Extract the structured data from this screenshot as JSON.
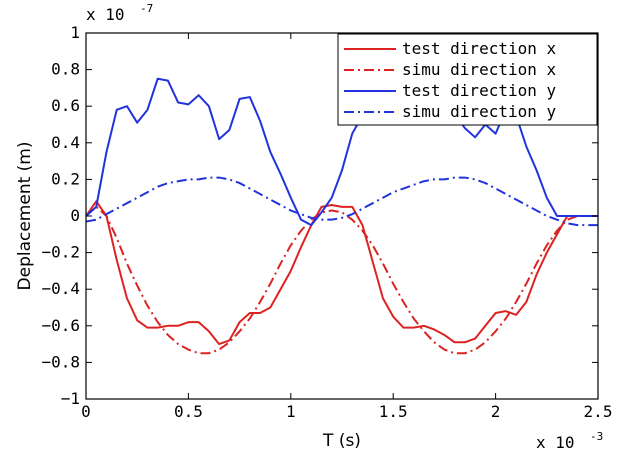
{
  "chart_data": {
    "type": "line",
    "xlabel": "T (s)",
    "ylabel": "Deplacement (m)",
    "x_multiplier": {
      "base": "x 10",
      "exponent": "-3"
    },
    "y_multiplier": {
      "base": "x 10",
      "exponent": "-7"
    },
    "xlim": [
      0,
      2.5
    ],
    "ylim": [
      -1,
      1
    ],
    "x_ticks": [
      0,
      0.5,
      1,
      1.5,
      2,
      2.5
    ],
    "x_tick_labels": [
      "0",
      "0.5",
      "1",
      "1.5",
      "2",
      "2.5"
    ],
    "y_ticks": [
      -1,
      -0.8,
      -0.6,
      -0.4,
      -0.2,
      0,
      0.2,
      0.4,
      0.6,
      0.8,
      1
    ],
    "y_tick_labels": [
      "−1",
      "−0.8",
      "−0.6",
      "−0.4",
      "−0.2",
      "0",
      "0.2",
      "0.4",
      "0.6",
      "0.8",
      "1"
    ],
    "grid": false,
    "legend_position": "top-right",
    "series": [
      {
        "name": "test direction x",
        "color": "#dd2222",
        "dash": "solid",
        "x": [
          0,
          0.05,
          0.1,
          0.15,
          0.2,
          0.25,
          0.3,
          0.35,
          0.4,
          0.45,
          0.5,
          0.55,
          0.6,
          0.65,
          0.7,
          0.75,
          0.8,
          0.85,
          0.9,
          0.95,
          1.0,
          1.05,
          1.1,
          1.15,
          1.2,
          1.25,
          1.3,
          1.35,
          1.4,
          1.45,
          1.5,
          1.55,
          1.6,
          1.65,
          1.7,
          1.75,
          1.8,
          1.85,
          1.9,
          1.95,
          2.0,
          2.05,
          2.1,
          2.15,
          2.2,
          2.25,
          2.3,
          2.35,
          2.4,
          2.45,
          2.5
        ],
        "y": [
          0.0,
          0.08,
          0.0,
          -0.24,
          -0.45,
          -0.57,
          -0.61,
          -0.61,
          -0.6,
          -0.6,
          -0.58,
          -0.58,
          -0.63,
          -0.7,
          -0.68,
          -0.58,
          -0.53,
          -0.53,
          -0.5,
          -0.4,
          -0.3,
          -0.17,
          -0.05,
          0.05,
          0.06,
          0.05,
          0.05,
          -0.05,
          -0.25,
          -0.45,
          -0.55,
          -0.61,
          -0.61,
          -0.6,
          -0.62,
          -0.65,
          -0.69,
          -0.69,
          -0.67,
          -0.6,
          -0.53,
          -0.52,
          -0.54,
          -0.47,
          -0.32,
          -0.2,
          -0.1,
          0.0,
          0.0,
          0.0,
          0.0
        ]
      },
      {
        "name": "simu direction x",
        "color": "#dd2222",
        "dash": "dashdot",
        "x": [
          0,
          0.05,
          0.1,
          0.15,
          0.2,
          0.25,
          0.3,
          0.35,
          0.4,
          0.45,
          0.5,
          0.55,
          0.6,
          0.65,
          0.7,
          0.75,
          0.8,
          0.85,
          0.9,
          0.95,
          1.0,
          1.05,
          1.1,
          1.15,
          1.2,
          1.25,
          1.3,
          1.35,
          1.4,
          1.45,
          1.5,
          1.55,
          1.6,
          1.65,
          1.7,
          1.75,
          1.8,
          1.85,
          1.9,
          1.95,
          2.0,
          2.05,
          2.1,
          2.15,
          2.2,
          2.25,
          2.3,
          2.35,
          2.4,
          2.45,
          2.5
        ],
        "y": [
          0.0,
          0.05,
          0.0,
          -0.12,
          -0.26,
          -0.38,
          -0.49,
          -0.58,
          -0.65,
          -0.7,
          -0.73,
          -0.75,
          -0.75,
          -0.73,
          -0.69,
          -0.63,
          -0.56,
          -0.47,
          -0.37,
          -0.26,
          -0.16,
          -0.08,
          -0.02,
          0.02,
          0.03,
          0.02,
          -0.02,
          -0.08,
          -0.16,
          -0.26,
          -0.37,
          -0.47,
          -0.56,
          -0.63,
          -0.69,
          -0.73,
          -0.75,
          -0.75,
          -0.73,
          -0.69,
          -0.63,
          -0.56,
          -0.47,
          -0.37,
          -0.26,
          -0.16,
          -0.08,
          -0.02,
          0.0,
          0.0,
          0.0
        ]
      },
      {
        "name": "test direction y",
        "color": "#2233dd",
        "dash": "solid",
        "x": [
          0,
          0.05,
          0.1,
          0.15,
          0.2,
          0.25,
          0.3,
          0.35,
          0.4,
          0.45,
          0.5,
          0.55,
          0.6,
          0.65,
          0.7,
          0.75,
          0.8,
          0.85,
          0.9,
          0.95,
          1.0,
          1.05,
          1.1,
          1.15,
          1.2,
          1.25,
          1.3,
          1.35,
          1.4,
          1.45,
          1.5,
          1.55,
          1.6,
          1.65,
          1.7,
          1.75,
          1.8,
          1.85,
          1.9,
          1.95,
          2.0,
          2.05,
          2.1,
          2.15,
          2.2,
          2.25,
          2.3,
          2.35,
          2.4,
          2.45,
          2.5
        ],
        "y": [
          0.0,
          0.05,
          0.35,
          0.58,
          0.6,
          0.51,
          0.58,
          0.75,
          0.74,
          0.62,
          0.61,
          0.66,
          0.6,
          0.42,
          0.47,
          0.64,
          0.65,
          0.52,
          0.35,
          0.23,
          0.1,
          -0.02,
          -0.05,
          0.02,
          0.1,
          0.25,
          0.45,
          0.55,
          0.58,
          0.6,
          0.62,
          0.6,
          0.56,
          0.52,
          0.55,
          0.58,
          0.56,
          0.48,
          0.43,
          0.5,
          0.45,
          0.58,
          0.55,
          0.38,
          0.25,
          0.1,
          0.0,
          0.0,
          0.0,
          0.0,
          0.0
        ]
      },
      {
        "name": "simu direction y",
        "color": "#2233dd",
        "dash": "dashdot",
        "x": [
          0,
          0.05,
          0.1,
          0.15,
          0.2,
          0.25,
          0.3,
          0.35,
          0.4,
          0.45,
          0.5,
          0.55,
          0.6,
          0.65,
          0.7,
          0.75,
          0.8,
          0.85,
          0.9,
          0.95,
          1.0,
          1.05,
          1.1,
          1.15,
          1.2,
          1.25,
          1.3,
          1.35,
          1.4,
          1.45,
          1.5,
          1.55,
          1.6,
          1.65,
          1.7,
          1.75,
          1.8,
          1.85,
          1.9,
          1.95,
          2.0,
          2.05,
          2.1,
          2.15,
          2.2,
          2.25,
          2.3,
          2.35,
          2.4,
          2.45,
          2.5
        ],
        "y": [
          -0.03,
          -0.02,
          0.01,
          0.04,
          0.07,
          0.1,
          0.13,
          0.16,
          0.18,
          0.19,
          0.2,
          0.2,
          0.21,
          0.21,
          0.2,
          0.18,
          0.15,
          0.12,
          0.09,
          0.06,
          0.03,
          0.01,
          -0.01,
          -0.02,
          -0.02,
          -0.01,
          0.01,
          0.04,
          0.07,
          0.1,
          0.13,
          0.15,
          0.17,
          0.19,
          0.2,
          0.2,
          0.21,
          0.21,
          0.2,
          0.18,
          0.15,
          0.12,
          0.09,
          0.06,
          0.03,
          0.0,
          -0.02,
          -0.04,
          -0.05,
          -0.05,
          -0.05
        ]
      }
    ]
  }
}
